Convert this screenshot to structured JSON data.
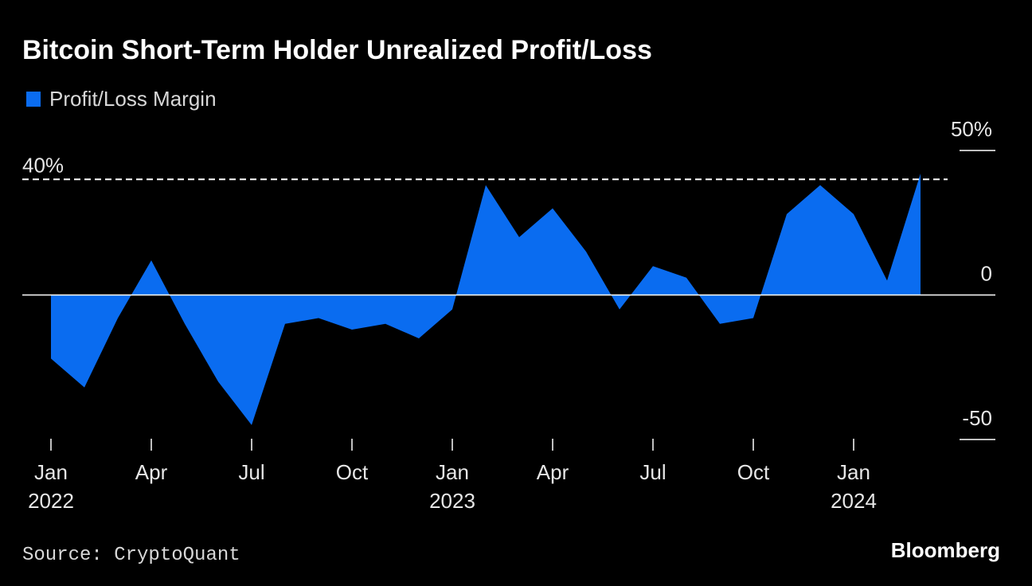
{
  "chart_data": {
    "type": "area",
    "title": "Bitcoin Short-Term Holder Unrealized Profit/Loss",
    "x": [
      "2022-01",
      "2022-02",
      "2022-03",
      "2022-04",
      "2022-05",
      "2022-06",
      "2022-07",
      "2022-08",
      "2022-09",
      "2022-10",
      "2022-11",
      "2022-12",
      "2023-01",
      "2023-02",
      "2023-03",
      "2023-04",
      "2023-05",
      "2023-06",
      "2023-07",
      "2023-08",
      "2023-09",
      "2023-10",
      "2023-11",
      "2023-12",
      "2024-01",
      "2024-02",
      "2024-03"
    ],
    "series": [
      {
        "name": "Profit/Loss Margin",
        "color": "#0a6cf0",
        "values": [
          -22,
          -32,
          -8,
          12,
          -10,
          -30,
          -45,
          -10,
          -8,
          -12,
          -10,
          -15,
          -5,
          38,
          20,
          30,
          15,
          -5,
          10,
          6,
          -10,
          -8,
          28,
          38,
          28,
          5,
          42
        ]
      }
    ],
    "xlim": [
      "2021-12",
      "2024-05"
    ],
    "xticks": [
      {
        "value": "2022-01",
        "label": "Jan"
      },
      {
        "value": "2022-04",
        "label": "Apr"
      },
      {
        "value": "2022-07",
        "label": "Jul"
      },
      {
        "value": "2022-10",
        "label": "Oct"
      },
      {
        "value": "2023-01",
        "label": "Jan"
      },
      {
        "value": "2023-04",
        "label": "Apr"
      },
      {
        "value": "2023-07",
        "label": "Jul"
      },
      {
        "value": "2023-10",
        "label": "Oct"
      },
      {
        "value": "2024-01",
        "label": "Jan"
      }
    ],
    "xtick_years": [
      {
        "value": "2022-01",
        "label": "2022"
      },
      {
        "value": "2023-01",
        "label": "2023"
      },
      {
        "value": "2024-01",
        "label": "2024"
      }
    ],
    "ylim": [
      -50,
      50
    ],
    "yticks": [
      {
        "value": 50,
        "label": "50%"
      },
      0,
      -50
    ],
    "reference_line": {
      "value": 40,
      "label": "40%"
    },
    "source": "Source: CryptoQuant",
    "brand": "Bloomberg"
  }
}
